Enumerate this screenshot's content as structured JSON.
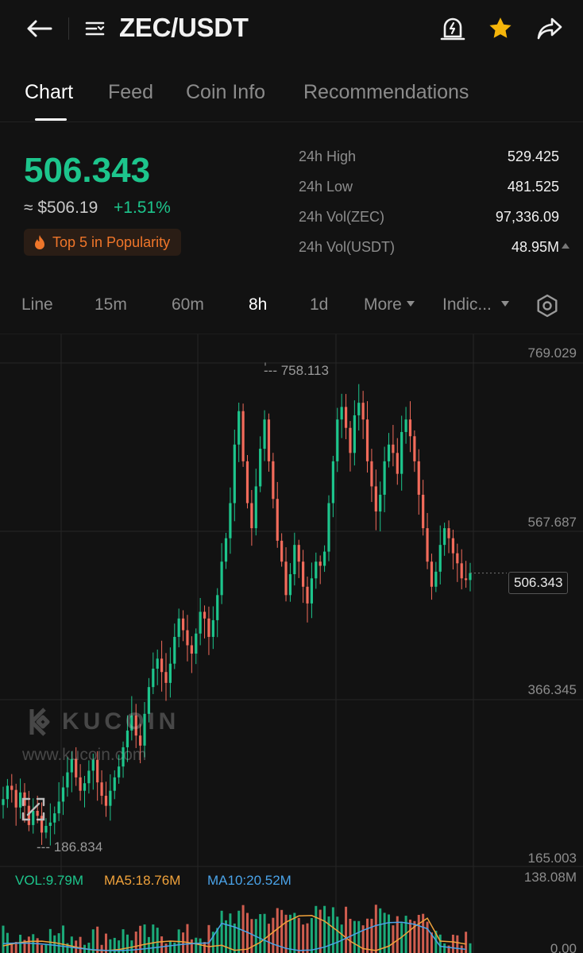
{
  "header": {
    "pair": "ZEC/USDT"
  },
  "tabs": [
    {
      "label": "Chart",
      "active": true
    },
    {
      "label": "Feed",
      "active": false
    },
    {
      "label": "Coin Info",
      "active": false
    },
    {
      "label": "Recommendations",
      "active": false
    }
  ],
  "price": {
    "last": "506.343",
    "usd": "≈ $506.19",
    "change": "+1.51%",
    "badge": "Top 5 in Popularity"
  },
  "stats": [
    {
      "label": "24h High",
      "value": "529.425"
    },
    {
      "label": "24h Low",
      "value": "481.525"
    },
    {
      "label": "24h Vol(ZEC)",
      "value": "97,336.09"
    },
    {
      "label": "24h Vol(USDT)",
      "value": "48.95M"
    }
  ],
  "intervals": [
    {
      "label": "Line",
      "active": false
    },
    {
      "label": "15m",
      "active": false
    },
    {
      "label": "60m",
      "active": false
    },
    {
      "label": "8h",
      "active": true
    },
    {
      "label": "1d",
      "active": false
    },
    {
      "label": "More",
      "active": false
    },
    {
      "label": "Indic...",
      "active": false
    }
  ],
  "watermark": {
    "brand": "KUCOIN",
    "url": "www.kucoin.com"
  },
  "chart": {
    "y_ticks": [
      "769.029",
      "567.687",
      "366.345",
      "165.003"
    ],
    "current_price": "506.343",
    "high_marker": "--- 758.113",
    "low_marker": "--- 186.834",
    "vol_max": "138.08M",
    "vol_zero": "0.00",
    "vol_legend": {
      "vol": "VOL:9.79M",
      "ma5": "MA5:18.76M",
      "ma10": "MA10:20.52M"
    }
  },
  "colors": {
    "up": "#1dc58c",
    "down": "#f26b5b",
    "accent_orange": "#f0762a",
    "star": "#f5b50a",
    "ma5": "#f0a23b",
    "ma10": "#4aa3e8"
  },
  "chart_data": {
    "type": "candlestick",
    "ylim": [
      165.003,
      769.029
    ],
    "y_ticks": [
      769.029,
      567.687,
      366.345,
      165.003
    ],
    "last": 506.343,
    "high": 758.113,
    "low": 186.834,
    "closes": [
      236,
      252,
      247,
      226,
      244,
      228,
      205,
      222,
      216,
      196,
      204,
      208,
      219,
      233,
      250,
      268,
      284,
      262,
      246,
      255,
      270,
      283,
      256,
      240,
      228,
      246,
      262,
      275,
      298,
      318,
      336,
      312,
      300,
      338,
      370,
      392,
      404,
      388,
      375,
      398,
      430,
      452,
      438,
      420,
      410,
      434,
      460,
      452,
      430,
      450,
      480,
      520,
      548,
      590,
      660,
      700,
      640,
      590,
      560,
      610,
      655,
      690,
      640,
      595,
      545,
      520,
      480,
      505,
      540,
      520,
      490,
      470,
      500,
      520,
      515,
      532,
      590,
      640,
      690,
      705,
      680,
      650,
      695,
      710,
      690,
      640,
      610,
      580,
      600,
      640,
      660,
      650,
      625,
      675,
      690,
      670,
      640,
      600,
      560,
      520,
      490,
      508,
      540,
      560,
      548,
      530,
      518,
      500,
      498,
      506.343
    ]
  }
}
